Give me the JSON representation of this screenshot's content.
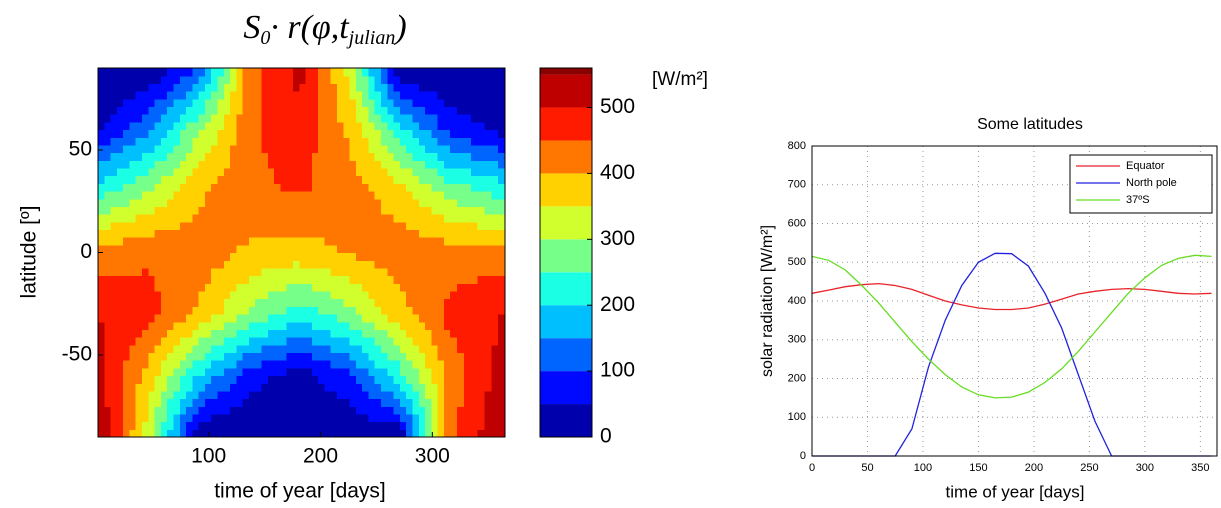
{
  "chart_data": [
    {
      "type": "contour",
      "title": [
        "S",
        "0",
        "· r(φ,t",
        "julian",
        ")"
      ],
      "xlabel": "time of year [days]",
      "ylabel": "latitude [º]",
      "colorbar_label": "[W/m²]",
      "x": [
        1,
        46,
        91,
        136,
        181,
        226,
        271,
        316,
        365
      ],
      "y": [
        -90,
        -60,
        -30,
        0,
        30,
        60,
        90
      ],
      "z": [
        [
          550,
          324,
          0,
          0,
          0,
          0,
          10,
          437,
          555
        ],
        [
          520,
          380,
          200,
          70,
          25,
          90,
          230,
          420,
          525
        ],
        [
          500,
          470,
          390,
          290,
          220,
          280,
          380,
          465,
          502
        ],
        [
          420,
          442,
          430,
          390,
          378,
          405,
          430,
          425,
          420
        ],
        [
          230,
          300,
          390,
          440,
          455,
          430,
          370,
          280,
          228
        ],
        [
          40,
          140,
          290,
          440,
          480,
          390,
          220,
          80,
          35
        ],
        [
          0,
          0,
          103,
          420,
          520,
          335,
          0,
          0,
          0
        ]
      ],
      "levels": [
        0,
        50,
        100,
        150,
        200,
        250,
        300,
        350,
        400,
        450,
        500,
        550
      ],
      "colormap": "jet",
      "xlim": [
        1,
        365
      ],
      "xticks": [
        100,
        200,
        300
      ],
      "ylim": [
        -90,
        90
      ],
      "yticks": [
        -50,
        0,
        50
      ],
      "clim": [
        0,
        560
      ],
      "cticks": [
        0,
        100,
        200,
        300,
        400,
        500
      ]
    },
    {
      "type": "line",
      "title": "Some latitudes",
      "xlabel": "time of year [days]",
      "ylabel": "solar radiation [W/m²]",
      "x": [
        0,
        15,
        30,
        45,
        60,
        75,
        90,
        105,
        120,
        135,
        150,
        165,
        180,
        195,
        210,
        225,
        240,
        255,
        270,
        285,
        300,
        315,
        330,
        345,
        360
      ],
      "series": [
        {
          "name": "Equator",
          "color": "#e8232a",
          "values": [
            420,
            428,
            437,
            442,
            445,
            440,
            430,
            415,
            400,
            390,
            382,
            378,
            378,
            382,
            392,
            405,
            418,
            425,
            430,
            432,
            430,
            425,
            420,
            418,
            420
          ]
        },
        {
          "name": "North pole",
          "color": "#2222e0",
          "values": [
            0,
            0,
            0,
            0,
            0,
            0,
            70,
            230,
            350,
            440,
            500,
            523,
            522,
            490,
            420,
            330,
            210,
            90,
            0,
            0,
            0,
            0,
            0,
            0,
            0
          ]
        },
        {
          "name": "37ºS",
          "color": "#66dd22",
          "values": [
            515,
            505,
            480,
            440,
            395,
            345,
            295,
            250,
            210,
            178,
            158,
            150,
            152,
            165,
            190,
            225,
            270,
            320,
            370,
            420,
            460,
            492,
            510,
            518,
            515
          ]
        }
      ],
      "xlim": [
        0,
        365
      ],
      "xticks": [
        0,
        50,
        100,
        150,
        200,
        250,
        300,
        350
      ],
      "ylim": [
        0,
        800
      ],
      "yticks": [
        0,
        100,
        200,
        300,
        400,
        500,
        600,
        700,
        800
      ],
      "grid": true,
      "legend": "upper right"
    }
  ]
}
